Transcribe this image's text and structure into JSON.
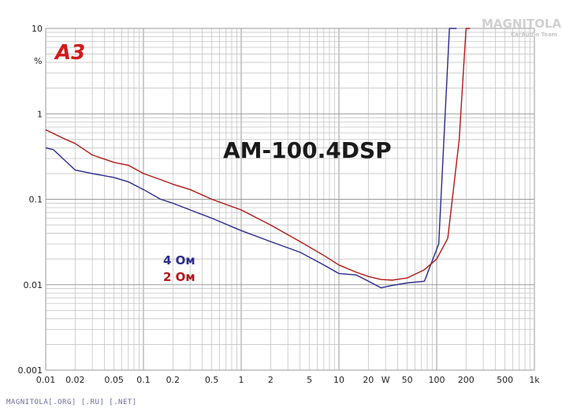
{
  "chart_data": {
    "type": "line",
    "title": "AM-100.4DSP",
    "ylabel": "%",
    "xscale": "log",
    "yscale": "log",
    "xlim": [
      0.01,
      1000
    ],
    "ylim": [
      0.001,
      10
    ],
    "grid": true,
    "x_tick_labels": [
      "0.01",
      "0.02",
      "0.05",
      "0.1",
      "0.2",
      "0.5",
      "1",
      "2",
      "5",
      "10",
      "20",
      "W",
      "50",
      "100",
      "200",
      "500",
      "1k"
    ],
    "x_tick_values": [
      0.01,
      0.02,
      0.05,
      0.1,
      0.2,
      0.5,
      1,
      2,
      5,
      10,
      20,
      30,
      50,
      100,
      200,
      500,
      1000
    ],
    "y_tick_labels": [
      "10",
      "1",
      "0.1",
      "0.01",
      "0.001"
    ],
    "y_tick_values": [
      10,
      1,
      0.1,
      0.01,
      0.001
    ],
    "series": [
      {
        "name": "4 Ом",
        "color": "#2a2a8c",
        "x": [
          0.01,
          0.012,
          0.02,
          0.03,
          0.05,
          0.07,
          0.1,
          0.15,
          0.2,
          0.3,
          0.5,
          1,
          2,
          4,
          7,
          10,
          15,
          20,
          27,
          35,
          50,
          75,
          105,
          135,
          150,
          160
        ],
        "y": [
          0.4,
          0.38,
          0.22,
          0.2,
          0.18,
          0.16,
          0.13,
          0.1,
          0.09,
          0.075,
          0.06,
          0.043,
          0.032,
          0.024,
          0.017,
          0.0135,
          0.013,
          0.011,
          0.0092,
          0.0098,
          0.0105,
          0.011,
          0.03,
          10,
          10,
          10
        ]
      },
      {
        "name": "2 Ом",
        "color": "#b01818",
        "x": [
          0.01,
          0.015,
          0.02,
          0.03,
          0.05,
          0.07,
          0.1,
          0.15,
          0.2,
          0.3,
          0.5,
          1,
          2,
          4,
          7,
          10,
          15,
          20,
          27,
          35,
          50,
          75,
          100,
          130,
          170,
          190,
          200,
          220
        ],
        "y": [
          0.65,
          0.52,
          0.45,
          0.33,
          0.27,
          0.25,
          0.2,
          0.17,
          0.15,
          0.13,
          0.1,
          0.075,
          0.05,
          0.032,
          0.022,
          0.017,
          0.014,
          0.0125,
          0.0115,
          0.0113,
          0.012,
          0.015,
          0.02,
          0.035,
          0.5,
          4,
          10,
          10
        ]
      }
    ],
    "legend": [
      "4 Ом",
      "2 Ом"
    ],
    "legend_position": "center-left"
  },
  "badge": "A3",
  "watermark": {
    "main": "MAGNITOLA",
    "sub": "CarAudio Team"
  },
  "footer": "MAGNITOLA[.ORG] [.RU] [.NET]"
}
